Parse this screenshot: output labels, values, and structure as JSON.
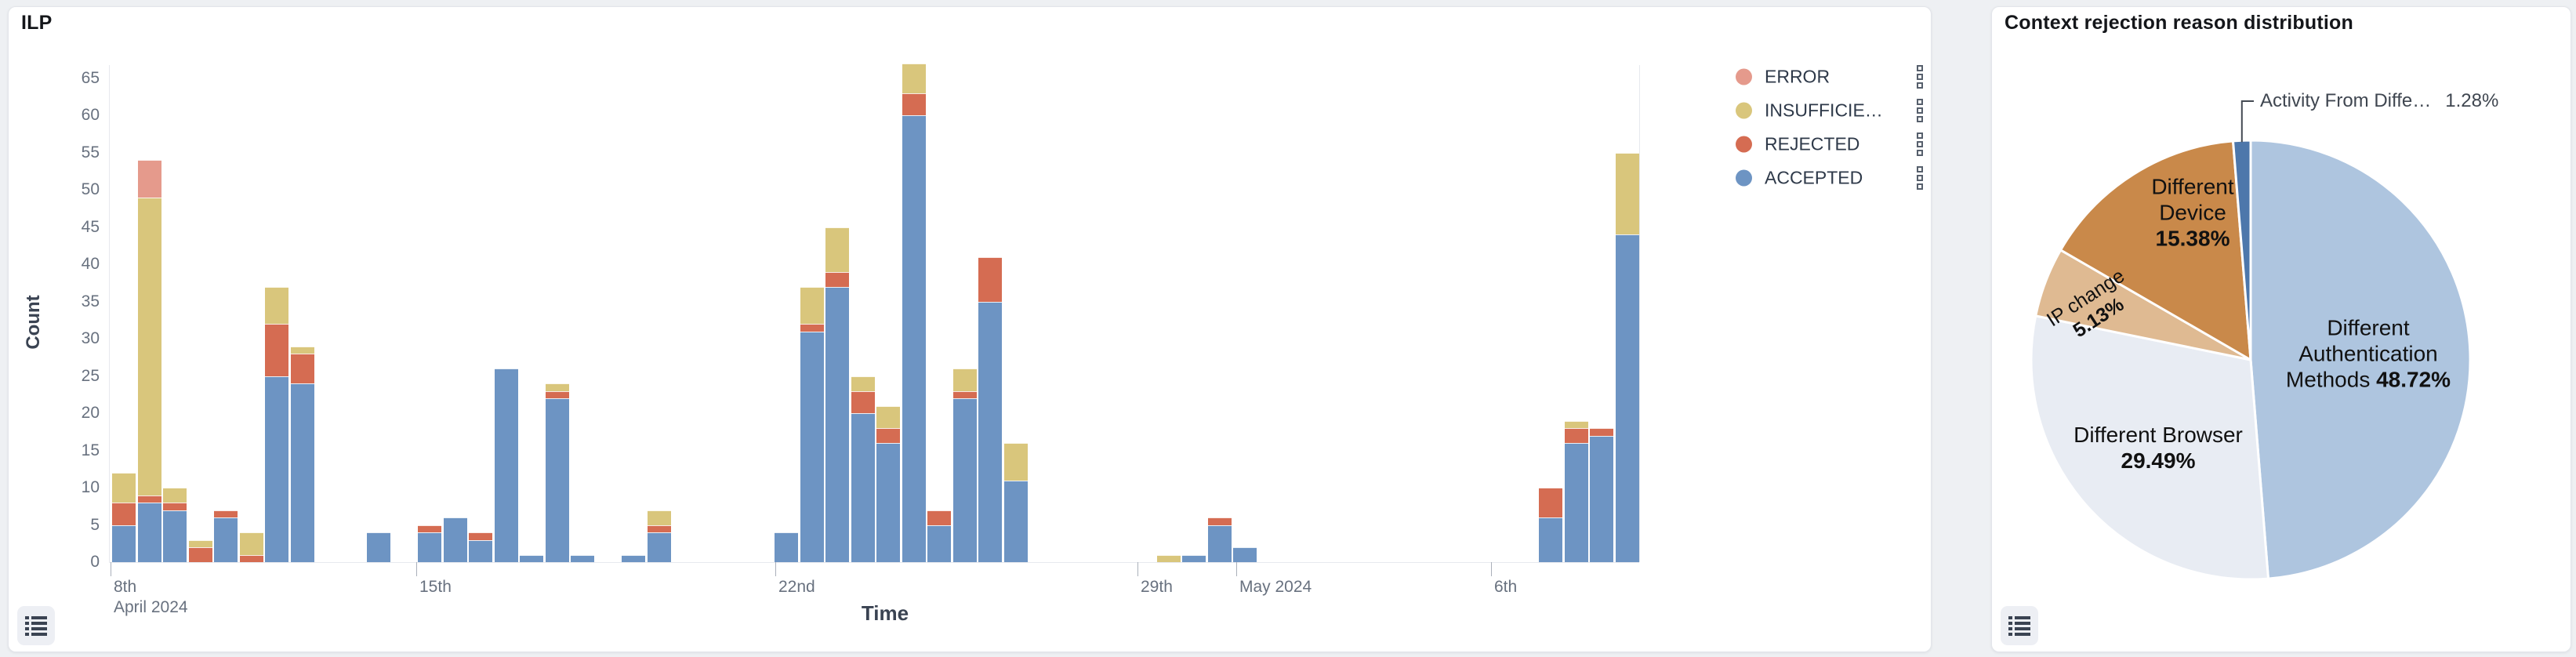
{
  "left_panel": {
    "title": "ILP",
    "y_axis": {
      "title": "Count"
    },
    "x_axis": {
      "title": "Time"
    },
    "legend": [
      {
        "key": "error",
        "label": "ERROR",
        "color": "#e59a8c"
      },
      {
        "key": "insufficient",
        "label": "INSUFFICIE…",
        "color": "#d9c67c"
      },
      {
        "key": "rejected",
        "label": "REJECTED",
        "color": "#d56c52"
      },
      {
        "key": "accepted",
        "label": "ACCEPTED",
        "color": "#6d94c3"
      }
    ]
  },
  "right_panel": {
    "title": "Context rejection reason distribution",
    "callout": {
      "label": "Activity From Diffe…",
      "pct_text": "1.28%"
    }
  },
  "icons": {
    "legend_toggle": "list-icon",
    "row_handle": "kebab-squares-icon"
  },
  "chart_data": [
    {
      "type": "bar",
      "stacked": true,
      "title": "ILP",
      "xlabel": "Time",
      "ylabel": "Count",
      "ylim": [
        0,
        65
      ],
      "y_tick_step": 5,
      "grid": false,
      "legend_position": "right-top",
      "x_unit": "12-hour buckets, slot 0 = April 8 2024",
      "stack_order": [
        "accepted",
        "rejected",
        "insufficient",
        "error"
      ],
      "x_ticks": [
        {
          "x": 140,
          "label": "8th",
          "sub": "April 2024"
        },
        {
          "x": 530,
          "label": "15th"
        },
        {
          "x": 988,
          "label": "22nd"
        },
        {
          "x": 1450,
          "label": "29th"
        },
        {
          "x": 1576,
          "label": "May 2024"
        },
        {
          "x": 1901,
          "label": "6th"
        }
      ],
      "bars": [
        {
          "slot": 0,
          "accepted": 5,
          "rejected": 3,
          "insufficient": 4,
          "error": 0
        },
        {
          "slot": 1,
          "accepted": 8,
          "rejected": 1,
          "insufficient": 40,
          "error": 5
        },
        {
          "slot": 2,
          "accepted": 7,
          "rejected": 1,
          "insufficient": 2,
          "error": 0
        },
        {
          "slot": 3,
          "accepted": 0,
          "rejected": 2,
          "insufficient": 1,
          "error": 0
        },
        {
          "slot": 4,
          "accepted": 6,
          "rejected": 1,
          "insufficient": 0,
          "error": 0
        },
        {
          "slot": 5,
          "accepted": 0,
          "rejected": 1,
          "insufficient": 3,
          "error": 0
        },
        {
          "slot": 6,
          "accepted": 25,
          "rejected": 7,
          "insufficient": 5,
          "error": 0
        },
        {
          "slot": 7,
          "accepted": 24,
          "rejected": 4,
          "insufficient": 1,
          "error": 0
        },
        {
          "slot": 10,
          "accepted": 4,
          "rejected": 0,
          "insufficient": 0,
          "error": 0
        },
        {
          "slot": 12,
          "accepted": 4,
          "rejected": 1,
          "insufficient": 0,
          "error": 0
        },
        {
          "slot": 13,
          "accepted": 6,
          "rejected": 0,
          "insufficient": 0,
          "error": 0
        },
        {
          "slot": 14,
          "accepted": 3,
          "rejected": 1,
          "insufficient": 0,
          "error": 0
        },
        {
          "slot": 15,
          "accepted": 26,
          "rejected": 0,
          "insufficient": 0,
          "error": 0
        },
        {
          "slot": 16,
          "accepted": 1,
          "rejected": 0,
          "insufficient": 0,
          "error": 0
        },
        {
          "slot": 17,
          "accepted": 22,
          "rejected": 1,
          "insufficient": 1,
          "error": 0
        },
        {
          "slot": 18,
          "accepted": 1,
          "rejected": 0,
          "insufficient": 0,
          "error": 0
        },
        {
          "slot": 20,
          "accepted": 1,
          "rejected": 0,
          "insufficient": 0,
          "error": 0
        },
        {
          "slot": 21,
          "accepted": 4,
          "rejected": 1,
          "insufficient": 2,
          "error": 0
        },
        {
          "slot": 26,
          "accepted": 4,
          "rejected": 0,
          "insufficient": 0,
          "error": 0
        },
        {
          "slot": 27,
          "accepted": 31,
          "rejected": 1,
          "insufficient": 5,
          "error": 0
        },
        {
          "slot": 28,
          "accepted": 37,
          "rejected": 2,
          "insufficient": 6,
          "error": 0
        },
        {
          "slot": 29,
          "accepted": 20,
          "rejected": 3,
          "insufficient": 2,
          "error": 0
        },
        {
          "slot": 30,
          "accepted": 16,
          "rejected": 2,
          "insufficient": 3,
          "error": 0
        },
        {
          "slot": 31,
          "accepted": 60,
          "rejected": 3,
          "insufficient": 4,
          "error": 0
        },
        {
          "slot": 32,
          "accepted": 5,
          "rejected": 2,
          "insufficient": 0,
          "error": 0
        },
        {
          "slot": 33,
          "accepted": 22,
          "rejected": 1,
          "insufficient": 3,
          "error": 0
        },
        {
          "slot": 34,
          "accepted": 35,
          "rejected": 6,
          "insufficient": 0,
          "error": 0
        },
        {
          "slot": 35,
          "accepted": 11,
          "rejected": 0,
          "insufficient": 5,
          "error": 0
        },
        {
          "slot": 41,
          "accepted": 0,
          "rejected": 0,
          "insufficient": 1,
          "error": 0
        },
        {
          "slot": 42,
          "accepted": 1,
          "rejected": 0,
          "insufficient": 0,
          "error": 0
        },
        {
          "slot": 43,
          "accepted": 5,
          "rejected": 1,
          "insufficient": 0,
          "error": 0
        },
        {
          "slot": 44,
          "accepted": 2,
          "rejected": 0,
          "insufficient": 0,
          "error": 0
        },
        {
          "slot": 56,
          "accepted": 6,
          "rejected": 4,
          "insufficient": 0,
          "error": 0
        },
        {
          "slot": 57,
          "accepted": 16,
          "rejected": 2,
          "insufficient": 1,
          "error": 0
        },
        {
          "slot": 58,
          "accepted": 17,
          "rejected": 1,
          "insufficient": 0,
          "error": 0
        },
        {
          "slot": 59,
          "accepted": 44,
          "rejected": 0,
          "insufficient": 11,
          "error": 0
        }
      ]
    },
    {
      "type": "pie",
      "title": "Context rejection reason distribution",
      "start": "top",
      "direction": "clockwise",
      "slices": [
        {
          "label": "Different Authentication Methods",
          "pct": 48.72,
          "color": "#aec5df",
          "lines": [
            "Different",
            "Authentication",
            "Methods {pct}"
          ]
        },
        {
          "label": "Different Browser",
          "pct": 29.49,
          "color": "#e8ecf3",
          "lines": [
            "Different Browser",
            "{pct}"
          ]
        },
        {
          "label": "IP change",
          "pct": 5.13,
          "color": "#dfba92",
          "lines": [
            "IP change",
            "{pct}"
          ]
        },
        {
          "label": "Different Device",
          "pct": 15.38,
          "color": "#c9894a",
          "lines": [
            "Different",
            "Device",
            "{pct}"
          ]
        },
        {
          "label": "Activity From Diffe…",
          "pct": 1.28,
          "color": "#4d77ab",
          "lines": []
        }
      ]
    }
  ]
}
